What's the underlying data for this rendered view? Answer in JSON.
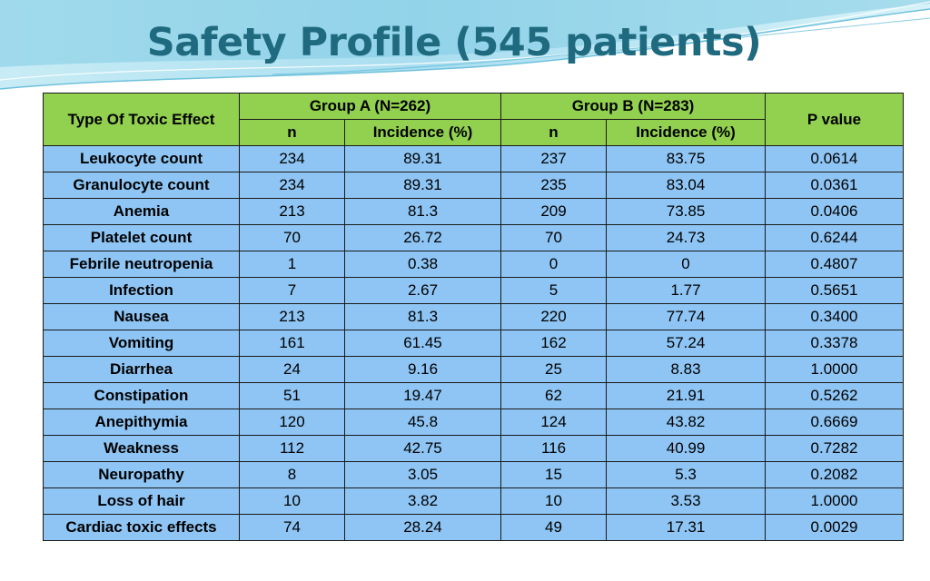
{
  "title": "Safety Profile (545 patients)",
  "colors": {
    "title": "#1f6a7e",
    "header_bg": "#92d050",
    "row_bg": "#8ec5f4",
    "border": "#1a1a1a"
  },
  "table": {
    "header": {
      "type_label": "Type Of Toxic Effect",
      "group_a": "Group A (N=262)",
      "group_b": "Group B (N=283)",
      "p_value": "P value",
      "n_label": "n",
      "incidence_label": "Incidence (%)"
    },
    "rows": [
      {
        "name": "Leukocyte count",
        "a_n": "234",
        "a_inc": "89.31",
        "b_n": "237",
        "b_inc": "83.75",
        "p": "0.0614"
      },
      {
        "name": "Granulocyte count",
        "a_n": "234",
        "a_inc": "89.31",
        "b_n": "235",
        "b_inc": "83.04",
        "p": "0.0361"
      },
      {
        "name": "Anemia",
        "a_n": "213",
        "a_inc": "81.3",
        "b_n": "209",
        "b_inc": "73.85",
        "p": "0.0406"
      },
      {
        "name": "Platelet count",
        "a_n": "70",
        "a_inc": "26.72",
        "b_n": "70",
        "b_inc": "24.73",
        "p": "0.6244"
      },
      {
        "name": "Febrile neutropenia",
        "a_n": "1",
        "a_inc": "0.38",
        "b_n": "0",
        "b_inc": "0",
        "p": "0.4807"
      },
      {
        "name": "Infection",
        "a_n": "7",
        "a_inc": "2.67",
        "b_n": "5",
        "b_inc": "1.77",
        "p": "0.5651"
      },
      {
        "name": "Nausea",
        "a_n": "213",
        "a_inc": "81.3",
        "b_n": "220",
        "b_inc": "77.74",
        "p": "0.3400"
      },
      {
        "name": "Vomiting",
        "a_n": "161",
        "a_inc": "61.45",
        "b_n": "162",
        "b_inc": "57.24",
        "p": "0.3378"
      },
      {
        "name": "Diarrhea",
        "a_n": "24",
        "a_inc": "9.16",
        "b_n": "25",
        "b_inc": "8.83",
        "p": "1.0000"
      },
      {
        "name": "Constipation",
        "a_n": "51",
        "a_inc": "19.47",
        "b_n": "62",
        "b_inc": "21.91",
        "p": "0.5262"
      },
      {
        "name": "Anepithymia",
        "a_n": "120",
        "a_inc": "45.8",
        "b_n": "124",
        "b_inc": "43.82",
        "p": "0.6669"
      },
      {
        "name": "Weakness",
        "a_n": "112",
        "a_inc": "42.75",
        "b_n": "116",
        "b_inc": "40.99",
        "p": "0.7282"
      },
      {
        "name": "Neuropathy",
        "a_n": "8",
        "a_inc": "3.05",
        "b_n": "15",
        "b_inc": "5.3",
        "p": "0.2082"
      },
      {
        "name": "Loss of hair",
        "a_n": "10",
        "a_inc": "3.82",
        "b_n": "10",
        "b_inc": "3.53",
        "p": "1.0000"
      },
      {
        "name": "Cardiac toxic effects",
        "a_n": "74",
        "a_inc": "28.24",
        "b_n": "49",
        "b_inc": "17.31",
        "p": "0.0029"
      }
    ]
  }
}
